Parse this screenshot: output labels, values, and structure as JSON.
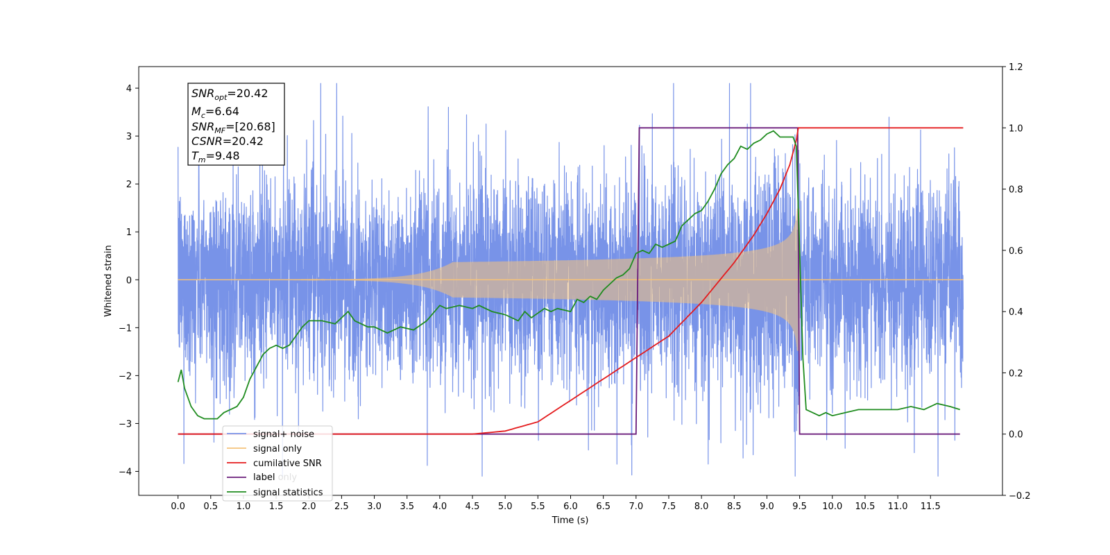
{
  "chart_data": {
    "type": "line",
    "xlabel": "Time (s)",
    "ylabel": "Whitened strain",
    "xlim": [
      -0.6,
      12.6
    ],
    "ylim": [
      -4.5,
      4.45
    ],
    "y2lim": [
      -0.2,
      1.2
    ],
    "x_ticks": [
      "0.0",
      "0.5",
      "1.0",
      "1.5",
      "2.0",
      "2.5",
      "3.0",
      "3.5",
      "4.0",
      "4.5",
      "5.0",
      "5.5",
      "6.0",
      "6.5",
      "7.0",
      "7.5",
      "8.0",
      "8.5",
      "9.0",
      "9.5",
      "10.0",
      "10.5",
      "11.0",
      "11.5"
    ],
    "y_ticks": [
      "4",
      "3",
      "2",
      "1",
      "0",
      "−1",
      "−2",
      "−3",
      "−4"
    ],
    "y2_ticks": [
      "1.2",
      "1.0",
      "0.8",
      "0.6",
      "0.4",
      "0.2",
      "0.0",
      "−0.2"
    ],
    "annotation": {
      "snr_opt": {
        "base": "SNR",
        "sub": "opt",
        "value": "=20.42"
      },
      "mc": {
        "base": "M",
        "sub": "c",
        "value": "=6.64"
      },
      "snr_mf": {
        "base": "SNR",
        "sub": "MF",
        "value": "=[20.68]"
      },
      "csnr": {
        "base": "CSNR",
        "value": "=20.42"
      },
      "tm": {
        "base": "T",
        "sub": "m",
        "value": "=9.48"
      }
    },
    "legend_location": "lower-left",
    "series": [
      {
        "name": "signal+ noise",
        "color": "#7893e8",
        "axis": "left",
        "kind": "noise",
        "x_range": [
          0,
          12
        ],
        "noise_sigma": 1.0
      },
      {
        "name": "signal only",
        "color": "#f5c27a",
        "axis": "left",
        "kind": "chirp",
        "merger_time": 9.48,
        "peak_amplitude": 2.7
      },
      {
        "name": "cumilative SNR",
        "color": "#e41a1c",
        "axis": "right",
        "x": [
          0,
          4.5,
          5.0,
          5.5,
          6.0,
          6.5,
          7.0,
          7.5,
          8.0,
          8.5,
          8.8,
          9.0,
          9.2,
          9.35,
          9.45,
          9.48,
          12.0
        ],
        "y": [
          0,
          0,
          0.01,
          0.04,
          0.11,
          0.18,
          0.25,
          0.32,
          0.43,
          0.56,
          0.65,
          0.72,
          0.8,
          0.88,
          0.96,
          1.0,
          1.0
        ]
      },
      {
        "name": "label",
        "color": "#6a1b7a",
        "axis": "right",
        "x": [
          0,
          7.0,
          7.05,
          9.47,
          9.5,
          11.95
        ],
        "y": [
          0,
          0,
          1,
          1,
          0,
          0
        ]
      },
      {
        "name": "label only",
        "color": "#6a1b7a",
        "axis": "right",
        "x": [],
        "y": []
      },
      {
        "name": "signal statistics",
        "color": "#1f8c1f",
        "axis": "right",
        "x": [
          0,
          0.05,
          0.1,
          0.2,
          0.3,
          0.4,
          0.5,
          0.6,
          0.7,
          0.8,
          0.9,
          1.0,
          1.1,
          1.2,
          1.3,
          1.4,
          1.5,
          1.6,
          1.7,
          1.8,
          1.9,
          2.0,
          2.2,
          2.4,
          2.5,
          2.6,
          2.7,
          2.8,
          2.9,
          3.0,
          3.2,
          3.4,
          3.6,
          3.8,
          4.0,
          4.1,
          4.3,
          4.5,
          4.6,
          4.8,
          5.0,
          5.2,
          5.3,
          5.4,
          5.6,
          5.7,
          5.8,
          6.0,
          6.1,
          6.2,
          6.3,
          6.4,
          6.5,
          6.6,
          6.7,
          6.8,
          6.9,
          7.0,
          7.1,
          7.2,
          7.3,
          7.4,
          7.5,
          7.6,
          7.7,
          7.8,
          7.9,
          8.0,
          8.1,
          8.2,
          8.3,
          8.4,
          8.5,
          8.6,
          8.7,
          8.8,
          8.9,
          9.0,
          9.1,
          9.2,
          9.3,
          9.4,
          9.45,
          9.5,
          9.55,
          9.6,
          9.7,
          9.8,
          9.9,
          10.0,
          10.2,
          10.4,
          10.6,
          10.8,
          11.0,
          11.2,
          11.4,
          11.6,
          11.8,
          11.95
        ],
        "y": [
          0.17,
          0.21,
          0.15,
          0.09,
          0.06,
          0.05,
          0.05,
          0.05,
          0.07,
          0.08,
          0.09,
          0.12,
          0.18,
          0.22,
          0.26,
          0.28,
          0.29,
          0.28,
          0.29,
          0.32,
          0.35,
          0.37,
          0.37,
          0.36,
          0.38,
          0.4,
          0.37,
          0.36,
          0.35,
          0.35,
          0.33,
          0.35,
          0.34,
          0.37,
          0.42,
          0.41,
          0.42,
          0.41,
          0.42,
          0.4,
          0.39,
          0.37,
          0.4,
          0.38,
          0.41,
          0.4,
          0.41,
          0.4,
          0.44,
          0.43,
          0.45,
          0.44,
          0.47,
          0.49,
          0.51,
          0.52,
          0.54,
          0.59,
          0.6,
          0.59,
          0.62,
          0.61,
          0.62,
          0.63,
          0.68,
          0.7,
          0.72,
          0.73,
          0.76,
          0.8,
          0.85,
          0.88,
          0.9,
          0.94,
          0.93,
          0.95,
          0.96,
          0.98,
          0.99,
          0.97,
          0.97,
          0.97,
          0.94,
          0.6,
          0.25,
          0.08,
          0.07,
          0.06,
          0.07,
          0.06,
          0.07,
          0.08,
          0.08,
          0.08,
          0.08,
          0.09,
          0.08,
          0.1,
          0.09,
          0.08
        ]
      }
    ]
  }
}
